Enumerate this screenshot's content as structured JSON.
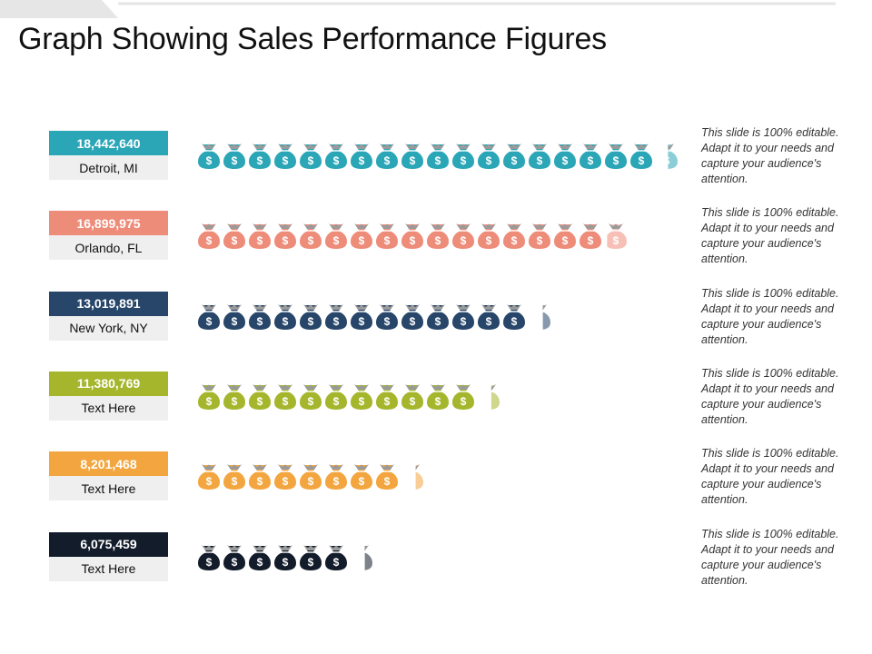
{
  "title": "Graph Showing Sales Performance Figures",
  "icon": "money-bag-icon",
  "chart_data": {
    "type": "bar",
    "title": "Graph Showing Sales Performance Figures",
    "categories": [
      "Detroit, MI",
      "Orlando, FL",
      "New York, NY",
      "Text Here",
      "Text Here",
      "Text Here"
    ],
    "values": [
      18442640,
      16899975,
      13019891,
      11380769,
      8201468,
      6075459
    ],
    "value_labels": [
      "18,442,640",
      "16,899,975",
      "13,019,891",
      "11,380,769",
      "8,201,468",
      "6,075,459"
    ],
    "units_per_icon": 1000000,
    "colors": [
      "#2BA6B7",
      "#EE8C7A",
      "#27466A",
      "#A5B62D",
      "#F3A63F",
      "#131C2A"
    ],
    "descriptions": [
      "This slide is 100% editable. Adapt it to your needs and capture your audience's attention.",
      "This slide is 100% editable. Adapt it to your needs and capture your audience's attention.",
      "This slide is 100% editable. Adapt it to your needs and capture your audience's attention.",
      "This slide is 100% editable. Adapt it to your needs and capture your audience's attention.",
      "This slide is 100% editable. Adapt it to your needs and capture your audience's attention.",
      "This slide is 100% editable. Adapt it to your needs and capture your audience's attention."
    ]
  }
}
